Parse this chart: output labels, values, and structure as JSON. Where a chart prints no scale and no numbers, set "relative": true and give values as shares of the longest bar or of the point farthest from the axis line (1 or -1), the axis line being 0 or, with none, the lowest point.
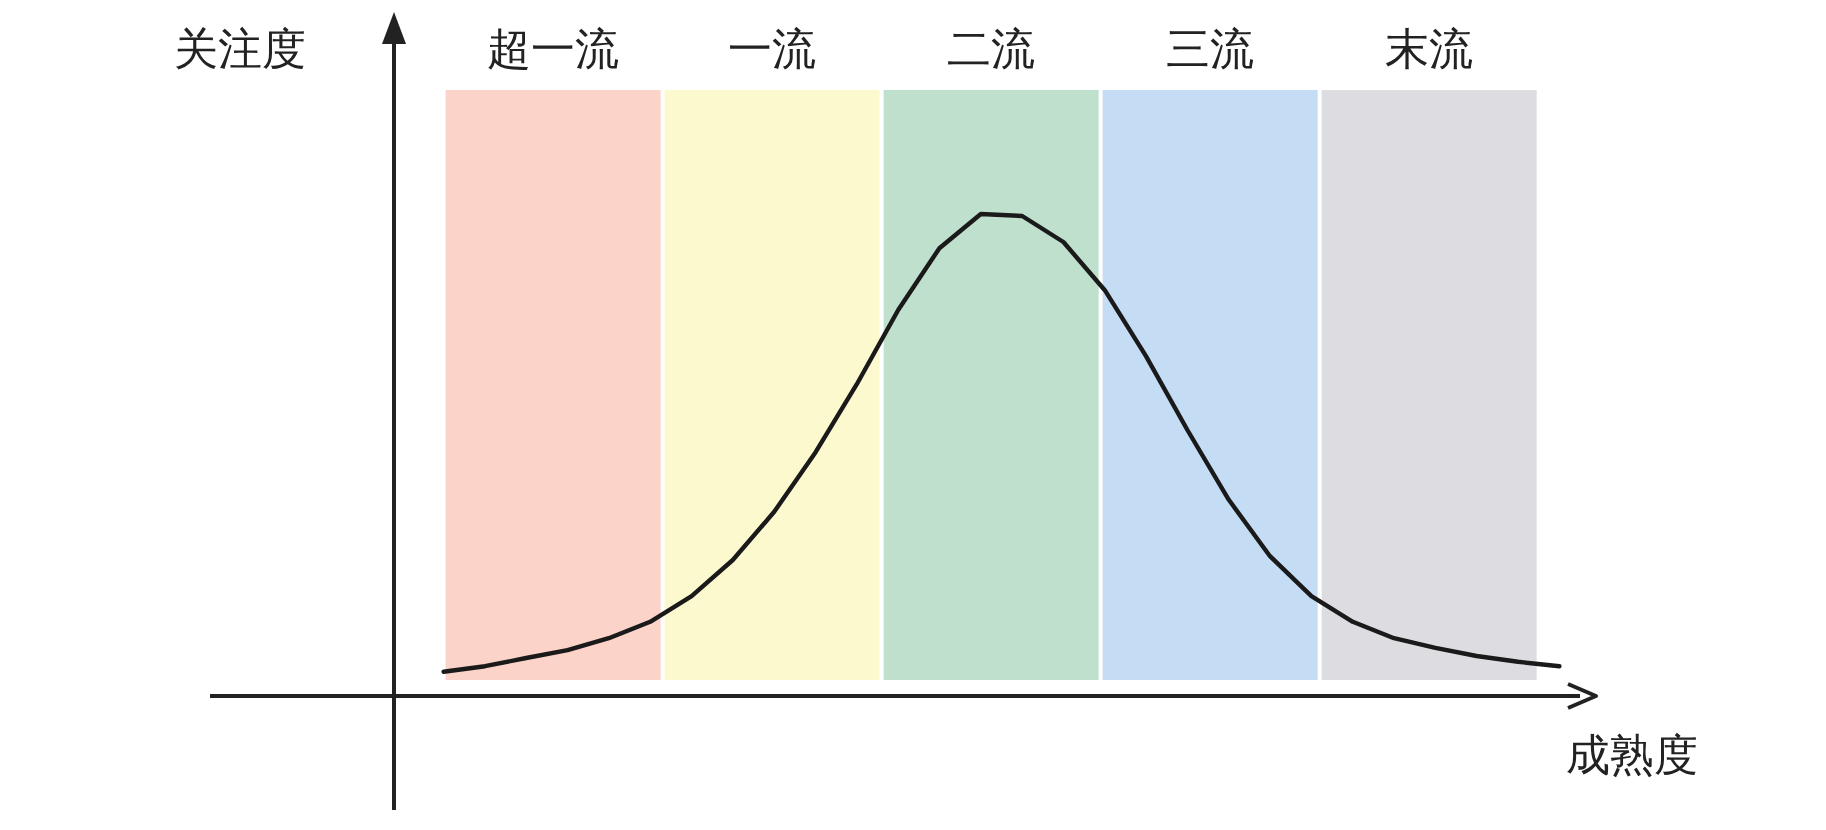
{
  "chart_data": {
    "type": "line",
    "relative": true,
    "xlabel": "成熟度",
    "ylabel": "关注度",
    "grid": false,
    "marker": "none",
    "line_style": "solid",
    "categories": [
      null,
      null,
      null,
      null,
      null,
      null,
      null,
      null,
      null,
      null,
      null,
      null,
      null,
      null,
      null,
      null,
      null,
      null,
      null,
      null,
      null,
      null,
      null,
      null,
      null,
      null,
      null,
      null
    ],
    "series": [
      {
        "color": "#1a1a1a",
        "values": [
          0.05,
          0.062,
          0.079,
          0.095,
          0.12,
          0.154,
          0.207,
          0.282,
          0.382,
          0.506,
          0.647,
          0.801,
          0.929,
          1.0,
          0.996,
          0.942,
          0.842,
          0.705,
          0.552,
          0.407,
          0.29,
          0.207,
          0.154,
          0.12,
          0.1,
          0.083,
          0.071,
          0.062
        ]
      }
    ],
    "annotations": [
      "超一流",
      "一流",
      "二流",
      "三流",
      "末流"
    ]
  }
}
